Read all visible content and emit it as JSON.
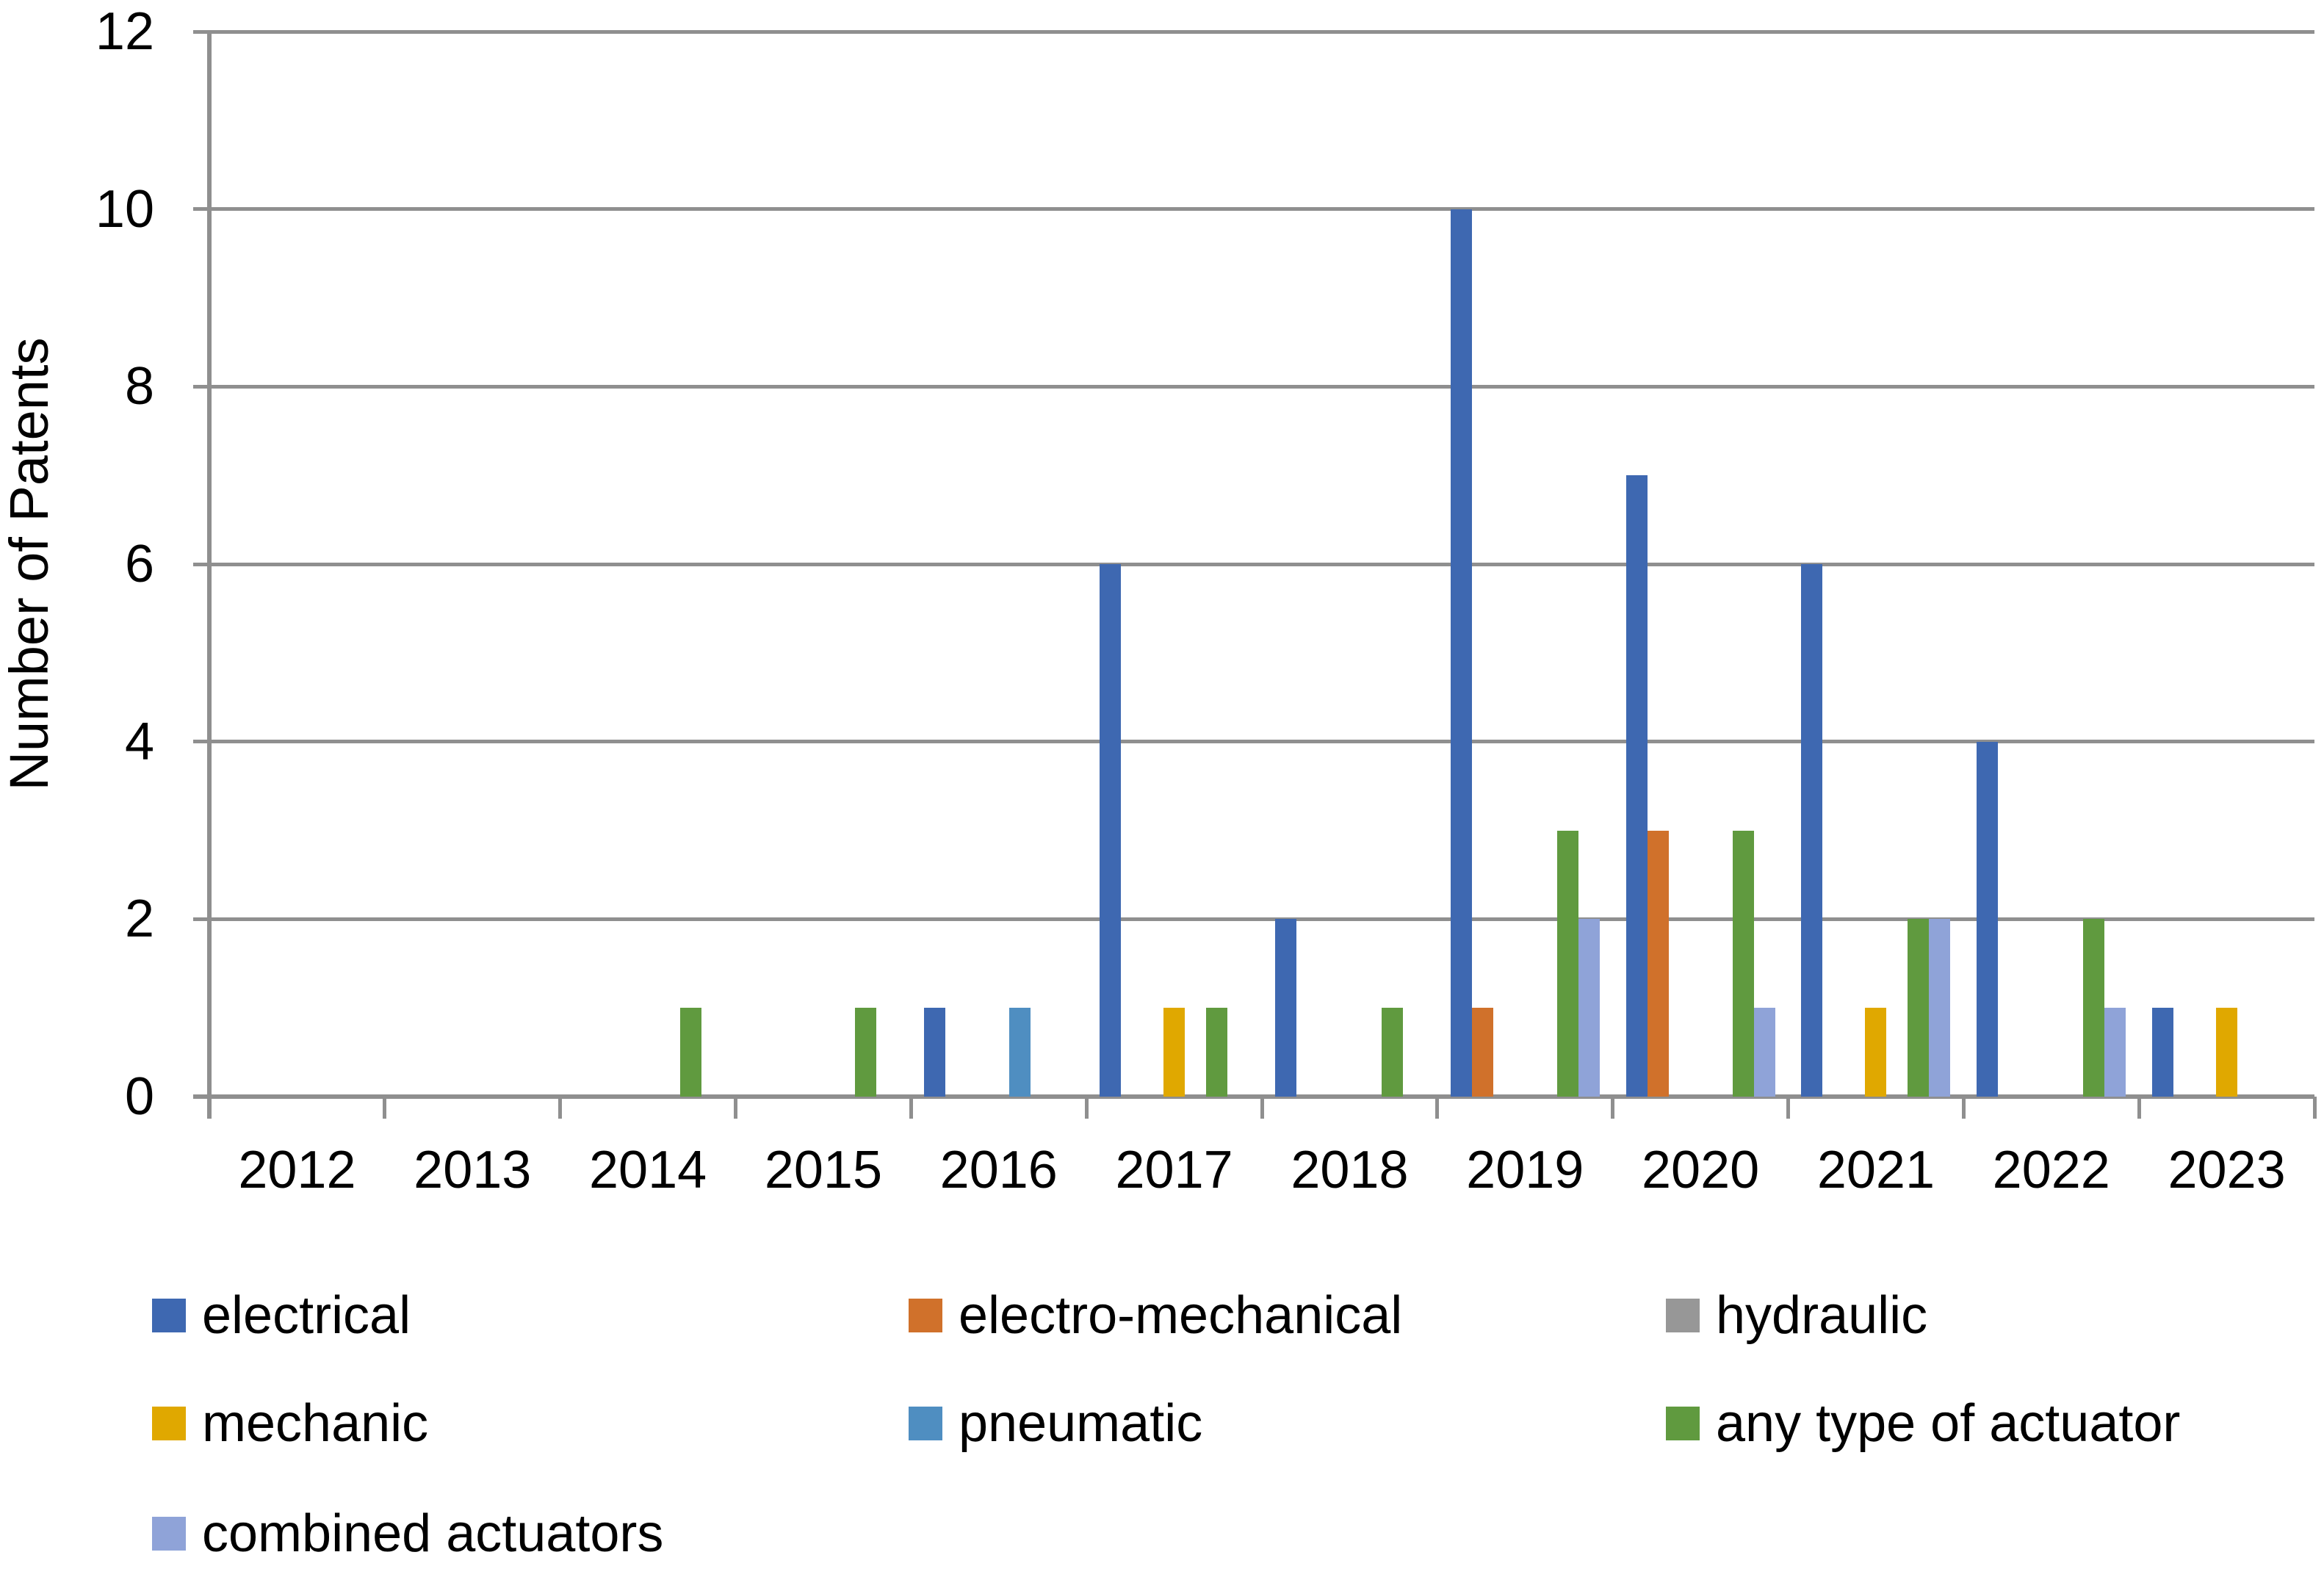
{
  "chart_data": {
    "type": "bar",
    "title": "",
    "xlabel": "",
    "ylabel": "Number of Patents",
    "ylim": [
      0,
      12
    ],
    "ytick_interval": 2,
    "ytick_labels": [
      "0",
      "2",
      "4",
      "6",
      "8",
      "10",
      "12"
    ],
    "grid": true,
    "legend_position": "bottom",
    "categories": [
      "2012",
      "2013",
      "2014",
      "2015",
      "2016",
      "2017",
      "2018",
      "2019",
      "2020",
      "2021",
      "2022",
      "2023"
    ],
    "series": [
      {
        "name": "electrical",
        "color": "#3E68B1",
        "values": [
          0,
          0,
          0,
          0,
          1,
          6,
          2,
          10,
          7,
          6,
          4,
          1
        ]
      },
      {
        "name": "electro-mechanical",
        "color": "#D0712B",
        "values": [
          0,
          0,
          0,
          0,
          0,
          0,
          0,
          1,
          3,
          0,
          0,
          0
        ]
      },
      {
        "name": "hydraulic",
        "color": "#979797",
        "values": [
          0,
          0,
          0,
          0,
          0,
          0,
          0,
          0,
          0,
          0,
          0,
          0
        ]
      },
      {
        "name": "mechanic",
        "color": "#E0A800",
        "values": [
          0,
          0,
          0,
          0,
          0,
          1,
          0,
          0,
          0,
          1,
          0,
          1
        ]
      },
      {
        "name": "pneumatic",
        "color": "#4F8EC1",
        "values": [
          0,
          0,
          0,
          0,
          1,
          0,
          0,
          0,
          0,
          0,
          0,
          0
        ]
      },
      {
        "name": "any type of actuator",
        "color": "#609A3F",
        "values": [
          0,
          0,
          1,
          1,
          0,
          1,
          1,
          3,
          3,
          2,
          2,
          0
        ]
      },
      {
        "name": "combined actuators",
        "color": "#8FA3D8",
        "values": [
          0,
          0,
          0,
          0,
          0,
          0,
          0,
          2,
          1,
          2,
          1,
          0
        ]
      }
    ],
    "axis_color": "#8f8f8f",
    "grid_color": "#8f8f8f"
  },
  "legend": {
    "rows": [
      [
        0,
        1,
        2
      ],
      [
        3,
        4,
        5
      ],
      [
        6
      ]
    ]
  }
}
